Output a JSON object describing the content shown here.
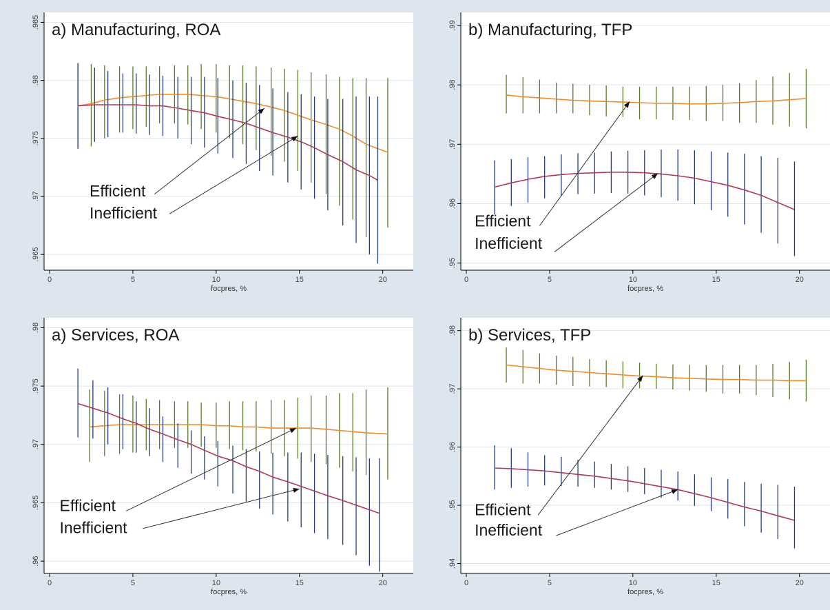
{
  "colors": {
    "background": "#dde5ee",
    "panel": "#ffffff",
    "grid": "#dde5ee",
    "axis": "#000000",
    "efficient_line": "#f08c28",
    "efficient_bars": "#5a7a28",
    "inefficient_line": "#b03a55",
    "inefficient_bars": "#1e3d7a",
    "arrow": "#333333"
  },
  "chart_data": [
    {
      "type": "line",
      "title": "a) Manufacturing, ROA",
      "xlabel": "focpres, %",
      "ylabel": "",
      "xlim": [
        0,
        21.5
      ],
      "ylim": [
        0.964,
        0.9855
      ],
      "xticks": [
        0,
        5,
        10,
        15,
        20
      ],
      "yticks": [
        0.965,
        0.97,
        0.975,
        0.98,
        0.985
      ],
      "ytick_labels": [
        ".965",
        ".97",
        ".975",
        ".98",
        ".985"
      ],
      "grid": true,
      "series": [
        {
          "name": "Efficient",
          "x": [
            1.7,
            2.5,
            3.3,
            4.2,
            5.0,
            5.8,
            6.6,
            7.5,
            8.3,
            9.1,
            10.0,
            10.8,
            11.6,
            12.4,
            13.3,
            14.1,
            14.9,
            15.7,
            16.6,
            17.4,
            18.2,
            19.0,
            20.3
          ],
          "y": [
            0.9778,
            0.978,
            0.9783,
            0.9785,
            0.9786,
            0.9787,
            0.9788,
            0.9788,
            0.9788,
            0.9787,
            0.9786,
            0.9784,
            0.9782,
            0.978,
            0.9777,
            0.9774,
            0.977,
            0.9766,
            0.9762,
            0.9758,
            0.9752,
            0.9745,
            0.9738
          ],
          "lo": [
            0.9742,
            0.9743,
            0.975,
            0.9755,
            0.9758,
            0.976,
            0.9763,
            0.9763,
            0.9762,
            0.9758,
            0.9755,
            0.975,
            0.9745,
            0.974,
            0.9735,
            0.973,
            0.9722,
            0.9712,
            0.9702,
            0.9692,
            0.968,
            0.9665,
            0.9673
          ],
          "hi": [
            0.9814,
            0.9814,
            0.9813,
            0.9812,
            0.9812,
            0.9812,
            0.9812,
            0.9813,
            0.9813,
            0.9814,
            0.9814,
            0.9813,
            0.9813,
            0.9812,
            0.9811,
            0.981,
            0.9809,
            0.9807,
            0.9805,
            0.9803,
            0.9802,
            0.9802,
            0.9802
          ]
        },
        {
          "name": "Inefficient",
          "x": [
            1.7,
            2.7,
            3.5,
            4.4,
            5.2,
            6.0,
            6.8,
            7.7,
            8.5,
            9.3,
            10.1,
            11.0,
            11.8,
            12.6,
            13.4,
            14.3,
            15.1,
            15.9,
            16.7,
            17.6,
            18.4,
            19.2,
            19.7
          ],
          "y": [
            0.9778,
            0.9779,
            0.9779,
            0.9779,
            0.9779,
            0.9778,
            0.9778,
            0.9776,
            0.9774,
            0.9772,
            0.9769,
            0.9766,
            0.9763,
            0.9759,
            0.9755,
            0.9751,
            0.9747,
            0.9742,
            0.9736,
            0.973,
            0.9723,
            0.9718,
            0.9714
          ],
          "lo": [
            0.9741,
            0.9747,
            0.9751,
            0.9755,
            0.9754,
            0.9753,
            0.9752,
            0.975,
            0.9745,
            0.9742,
            0.9737,
            0.9733,
            0.9728,
            0.9722,
            0.9718,
            0.9712,
            0.9706,
            0.9698,
            0.9688,
            0.9675,
            0.966,
            0.965,
            0.9642
          ],
          "hi": [
            0.9815,
            0.9811,
            0.9808,
            0.9806,
            0.9806,
            0.9805,
            0.9804,
            0.9803,
            0.9803,
            0.9803,
            0.9802,
            0.98,
            0.9798,
            0.9796,
            0.9793,
            0.979,
            0.9788,
            0.9786,
            0.9784,
            0.9784,
            0.9786,
            0.9786,
            0.9786
          ]
        }
      ],
      "annotations": [
        {
          "text": "Efficient",
          "x": 2.4,
          "y": 0.97
        },
        {
          "text": "Inefficient",
          "x": 2.4,
          "y": 0.9681
        }
      ],
      "arrows": [
        {
          "x1": 6.3,
          "y1": 0.9702,
          "x2": 12.9,
          "y2": 0.9776
        },
        {
          "x1": 7.2,
          "y1": 0.9685,
          "x2": 14.9,
          "y2": 0.9752
        }
      ]
    },
    {
      "type": "line",
      "title": "b) Manufacturing, TFP",
      "xlabel": "focpres, %",
      "ylabel": "",
      "xlim": [
        0,
        21.5
      ],
      "ylim": [
        0.9495,
        0.9915
      ],
      "xticks": [
        0,
        5,
        10,
        15,
        20
      ],
      "yticks": [
        0.95,
        0.96,
        0.97,
        0.98,
        0.99
      ],
      "ytick_labels": [
        ".95",
        ".96",
        ".97",
        ".98",
        ".99"
      ],
      "grid": true,
      "series": [
        {
          "name": "Efficient",
          "x": [
            2.4,
            3.4,
            4.4,
            5.4,
            6.4,
            7.4,
            8.4,
            9.4,
            10.4,
            11.4,
            12.4,
            13.4,
            14.4,
            15.4,
            16.4,
            17.4,
            18.4,
            19.4,
            20.4
          ],
          "y": [
            0.9783,
            0.978,
            0.9778,
            0.9776,
            0.9774,
            0.9773,
            0.9772,
            0.9771,
            0.977,
            0.9769,
            0.9769,
            0.9768,
            0.9768,
            0.9769,
            0.977,
            0.9772,
            0.9773,
            0.9775,
            0.9777
          ],
          "lo": [
            0.9752,
            0.9752,
            0.9752,
            0.9752,
            0.9752,
            0.9749,
            0.9747,
            0.9746,
            0.9742,
            0.9742,
            0.9741,
            0.9741,
            0.9739,
            0.9739,
            0.9736,
            0.9736,
            0.9733,
            0.973,
            0.9727
          ],
          "hi": [
            0.9817,
            0.9813,
            0.9809,
            0.9804,
            0.9802,
            0.98,
            0.9799,
            0.9797,
            0.9797,
            0.9797,
            0.9797,
            0.9797,
            0.9798,
            0.98,
            0.9803,
            0.9808,
            0.9814,
            0.982,
            0.9827
          ]
        },
        {
          "name": "Inefficient",
          "x": [
            1.7,
            2.7,
            3.7,
            4.7,
            5.7,
            6.7,
            7.7,
            8.7,
            9.7,
            10.7,
            11.7,
            12.7,
            13.7,
            14.7,
            15.7,
            16.7,
            17.7,
            18.7,
            19.7
          ],
          "y": [
            0.9628,
            0.9635,
            0.9641,
            0.9646,
            0.9649,
            0.9651,
            0.9652,
            0.9653,
            0.9653,
            0.9652,
            0.965,
            0.9647,
            0.9643,
            0.9637,
            0.9631,
            0.9623,
            0.9614,
            0.9602,
            0.959
          ],
          "lo": [
            0.9582,
            0.9596,
            0.9602,
            0.9609,
            0.9613,
            0.9616,
            0.9617,
            0.9618,
            0.9617,
            0.9614,
            0.9611,
            0.9605,
            0.9599,
            0.9589,
            0.9578,
            0.9565,
            0.9551,
            0.9533,
            0.9512
          ],
          "hi": [
            0.9673,
            0.9675,
            0.9678,
            0.968,
            0.9683,
            0.9685,
            0.9686,
            0.9688,
            0.9689,
            0.969,
            0.9691,
            0.9691,
            0.969,
            0.9688,
            0.9686,
            0.9684,
            0.968,
            0.9677,
            0.9671
          ]
        }
      ],
      "annotations": [
        {
          "text": "Efficient",
          "x": 0.5,
          "y": 0.9562
        },
        {
          "text": "Inefficient",
          "x": 0.5,
          "y": 0.9524
        }
      ],
      "arrows": [
        {
          "x1": 4.4,
          "y1": 0.9563,
          "x2": 9.8,
          "y2": 0.9772
        },
        {
          "x1": 5.3,
          "y1": 0.9519,
          "x2": 11.5,
          "y2": 0.9651
        }
      ]
    },
    {
      "type": "line",
      "title": "a) Services, ROA",
      "xlabel": "focpres, %",
      "ylabel": "",
      "xlim": [
        0,
        21.5
      ],
      "ylim": [
        0.9593,
        0.9805
      ],
      "xticks": [
        0,
        5,
        10,
        15,
        20
      ],
      "yticks": [
        0.96,
        0.965,
        0.97,
        0.975,
        0.98
      ],
      "ytick_labels": [
        ".96",
        ".965",
        ".97",
        ".975",
        ".98"
      ],
      "grid": true,
      "series": [
        {
          "name": "Efficient",
          "x": [
            2.4,
            3.3,
            4.2,
            5.0,
            5.8,
            6.6,
            7.5,
            8.3,
            9.1,
            10.0,
            10.8,
            11.6,
            12.4,
            13.3,
            14.1,
            14.9,
            15.7,
            16.6,
            17.4,
            18.2,
            19.0,
            20.3
          ],
          "y": [
            0.9715,
            0.9716,
            0.9717,
            0.9717,
            0.9717,
            0.9717,
            0.9717,
            0.9717,
            0.9717,
            0.9716,
            0.9716,
            0.9715,
            0.9715,
            0.9714,
            0.9714,
            0.9714,
            0.9714,
            0.9713,
            0.9712,
            0.9711,
            0.971,
            0.9709
          ],
          "lo": [
            0.9685,
            0.969,
            0.9692,
            0.9693,
            0.9695,
            0.9696,
            0.9697,
            0.9697,
            0.9698,
            0.9697,
            0.9696,
            0.9695,
            0.9694,
            0.9692,
            0.969,
            0.9688,
            0.9685,
            0.9683,
            0.968,
            0.9677,
            0.9674,
            0.967
          ],
          "hi": [
            0.9747,
            0.9746,
            0.9743,
            0.9742,
            0.9739,
            0.9738,
            0.9737,
            0.9737,
            0.9736,
            0.9736,
            0.9737,
            0.9737,
            0.9737,
            0.9738,
            0.9738,
            0.974,
            0.9742,
            0.9742,
            0.9744,
            0.9744,
            0.9747,
            0.9749
          ]
        },
        {
          "name": "Inefficient",
          "x": [
            1.7,
            2.6,
            3.5,
            4.4,
            5.2,
            6.0,
            6.8,
            7.7,
            8.5,
            9.3,
            10.1,
            11.0,
            11.8,
            12.6,
            13.4,
            14.3,
            15.1,
            15.9,
            16.7,
            17.6,
            18.4,
            19.2,
            19.8
          ],
          "y": [
            0.9735,
            0.9731,
            0.9727,
            0.9722,
            0.9718,
            0.9713,
            0.9709,
            0.9704,
            0.97,
            0.9695,
            0.969,
            0.9686,
            0.9681,
            0.9677,
            0.9672,
            0.9668,
            0.9664,
            0.966,
            0.9656,
            0.9652,
            0.9648,
            0.9644,
            0.9641
          ],
          "lo": [
            0.9706,
            0.9705,
            0.97,
            0.9696,
            0.9693,
            0.969,
            0.9685,
            0.968,
            0.9675,
            0.967,
            0.9664,
            0.9658,
            0.9651,
            0.9645,
            0.964,
            0.9634,
            0.9629,
            0.9624,
            0.9619,
            0.9614,
            0.9605,
            0.9596,
            0.9591
          ],
          "hi": [
            0.9765,
            0.9755,
            0.9749,
            0.9743,
            0.9737,
            0.9731,
            0.9724,
            0.9718,
            0.9712,
            0.9707,
            0.9703,
            0.9699,
            0.9696,
            0.9694,
            0.9693,
            0.9693,
            0.9693,
            0.9692,
            0.9691,
            0.969,
            0.9689,
            0.9688,
            0.9688
          ]
        }
      ],
      "annotations": [
        {
          "text": "Efficient",
          "x": 0.6,
          "y": 0.9643
        },
        {
          "text": "Inefficient",
          "x": 0.6,
          "y": 0.9624
        }
      ],
      "arrows": [
        {
          "x1": 4.6,
          "y1": 0.9643,
          "x2": 14.8,
          "y2": 0.9714
        },
        {
          "x1": 5.6,
          "y1": 0.9628,
          "x2": 15.0,
          "y2": 0.9662
        }
      ]
    },
    {
      "type": "line",
      "title": "b) Services, TFP",
      "xlabel": "focpres, %",
      "ylabel": "",
      "xlim": [
        0,
        21.5
      ],
      "ylim": [
        0.939,
        0.9815
      ],
      "xticks": [
        0,
        5,
        10,
        15,
        20
      ],
      "yticks": [
        0.94,
        0.95,
        0.96,
        0.97,
        0.98
      ],
      "ytick_labels": [
        ".94",
        ".95",
        ".96",
        ".97",
        ".98"
      ],
      "grid": true,
      "series": [
        {
          "name": "Efficient",
          "x": [
            2.4,
            3.4,
            4.4,
            5.4,
            6.4,
            7.4,
            8.4,
            9.4,
            10.4,
            11.4,
            12.4,
            13.4,
            14.4,
            15.4,
            16.4,
            17.4,
            18.4,
            19.4,
            20.4
          ],
          "y": [
            0.9741,
            0.9738,
            0.9735,
            0.9732,
            0.973,
            0.9728,
            0.9726,
            0.9724,
            0.9722,
            0.9721,
            0.9719,
            0.9718,
            0.9717,
            0.9716,
            0.9716,
            0.9715,
            0.9715,
            0.9714,
            0.9714
          ],
          "lo": [
            0.9711,
            0.9709,
            0.9709,
            0.9707,
            0.9705,
            0.9704,
            0.9703,
            0.9701,
            0.9701,
            0.97,
            0.9699,
            0.9697,
            0.9695,
            0.9692,
            0.9692,
            0.9689,
            0.9686,
            0.9682,
            0.9678
          ],
          "hi": [
            0.9771,
            0.9767,
            0.9761,
            0.9757,
            0.9755,
            0.9751,
            0.9749,
            0.9747,
            0.9745,
            0.9743,
            0.9742,
            0.9741,
            0.9741,
            0.9741,
            0.9741,
            0.9741,
            0.9743,
            0.9746,
            0.975
          ]
        },
        {
          "name": "Inefficient",
          "x": [
            1.7,
            2.7,
            3.7,
            4.7,
            5.7,
            6.7,
            7.7,
            8.7,
            9.7,
            10.7,
            11.7,
            12.7,
            13.7,
            14.7,
            15.7,
            16.7,
            17.7,
            18.7,
            19.7
          ],
          "y": [
            0.9564,
            0.9563,
            0.9561,
            0.9559,
            0.9556,
            0.9553,
            0.955,
            0.9546,
            0.9542,
            0.9537,
            0.9532,
            0.9527,
            0.952,
            0.9513,
            0.9505,
            0.9497,
            0.949,
            0.9482,
            0.9474
          ],
          "lo": [
            0.9527,
            0.953,
            0.9532,
            0.9534,
            0.9533,
            0.9532,
            0.953,
            0.9527,
            0.9523,
            0.9519,
            0.9513,
            0.9508,
            0.9499,
            0.949,
            0.9477,
            0.9464,
            0.9453,
            0.9442,
            0.9426
          ],
          "hi": [
            0.9603,
            0.9598,
            0.9591,
            0.9586,
            0.9583,
            0.9578,
            0.9575,
            0.9571,
            0.9567,
            0.9564,
            0.9561,
            0.9558,
            0.9553,
            0.9548,
            0.9545,
            0.954,
            0.9537,
            0.9535,
            0.9532
          ]
        }
      ],
      "annotations": [
        {
          "text": "Efficient",
          "x": 0.5,
          "y": 0.9483
        },
        {
          "text": "Inefficient",
          "x": 0.5,
          "y": 0.9448
        }
      ],
      "arrows": [
        {
          "x1": 4.3,
          "y1": 0.9483,
          "x2": 10.6,
          "y2": 0.9723
        },
        {
          "x1": 5.4,
          "y1": 0.9448,
          "x2": 12.7,
          "y2": 0.9527
        }
      ]
    }
  ]
}
